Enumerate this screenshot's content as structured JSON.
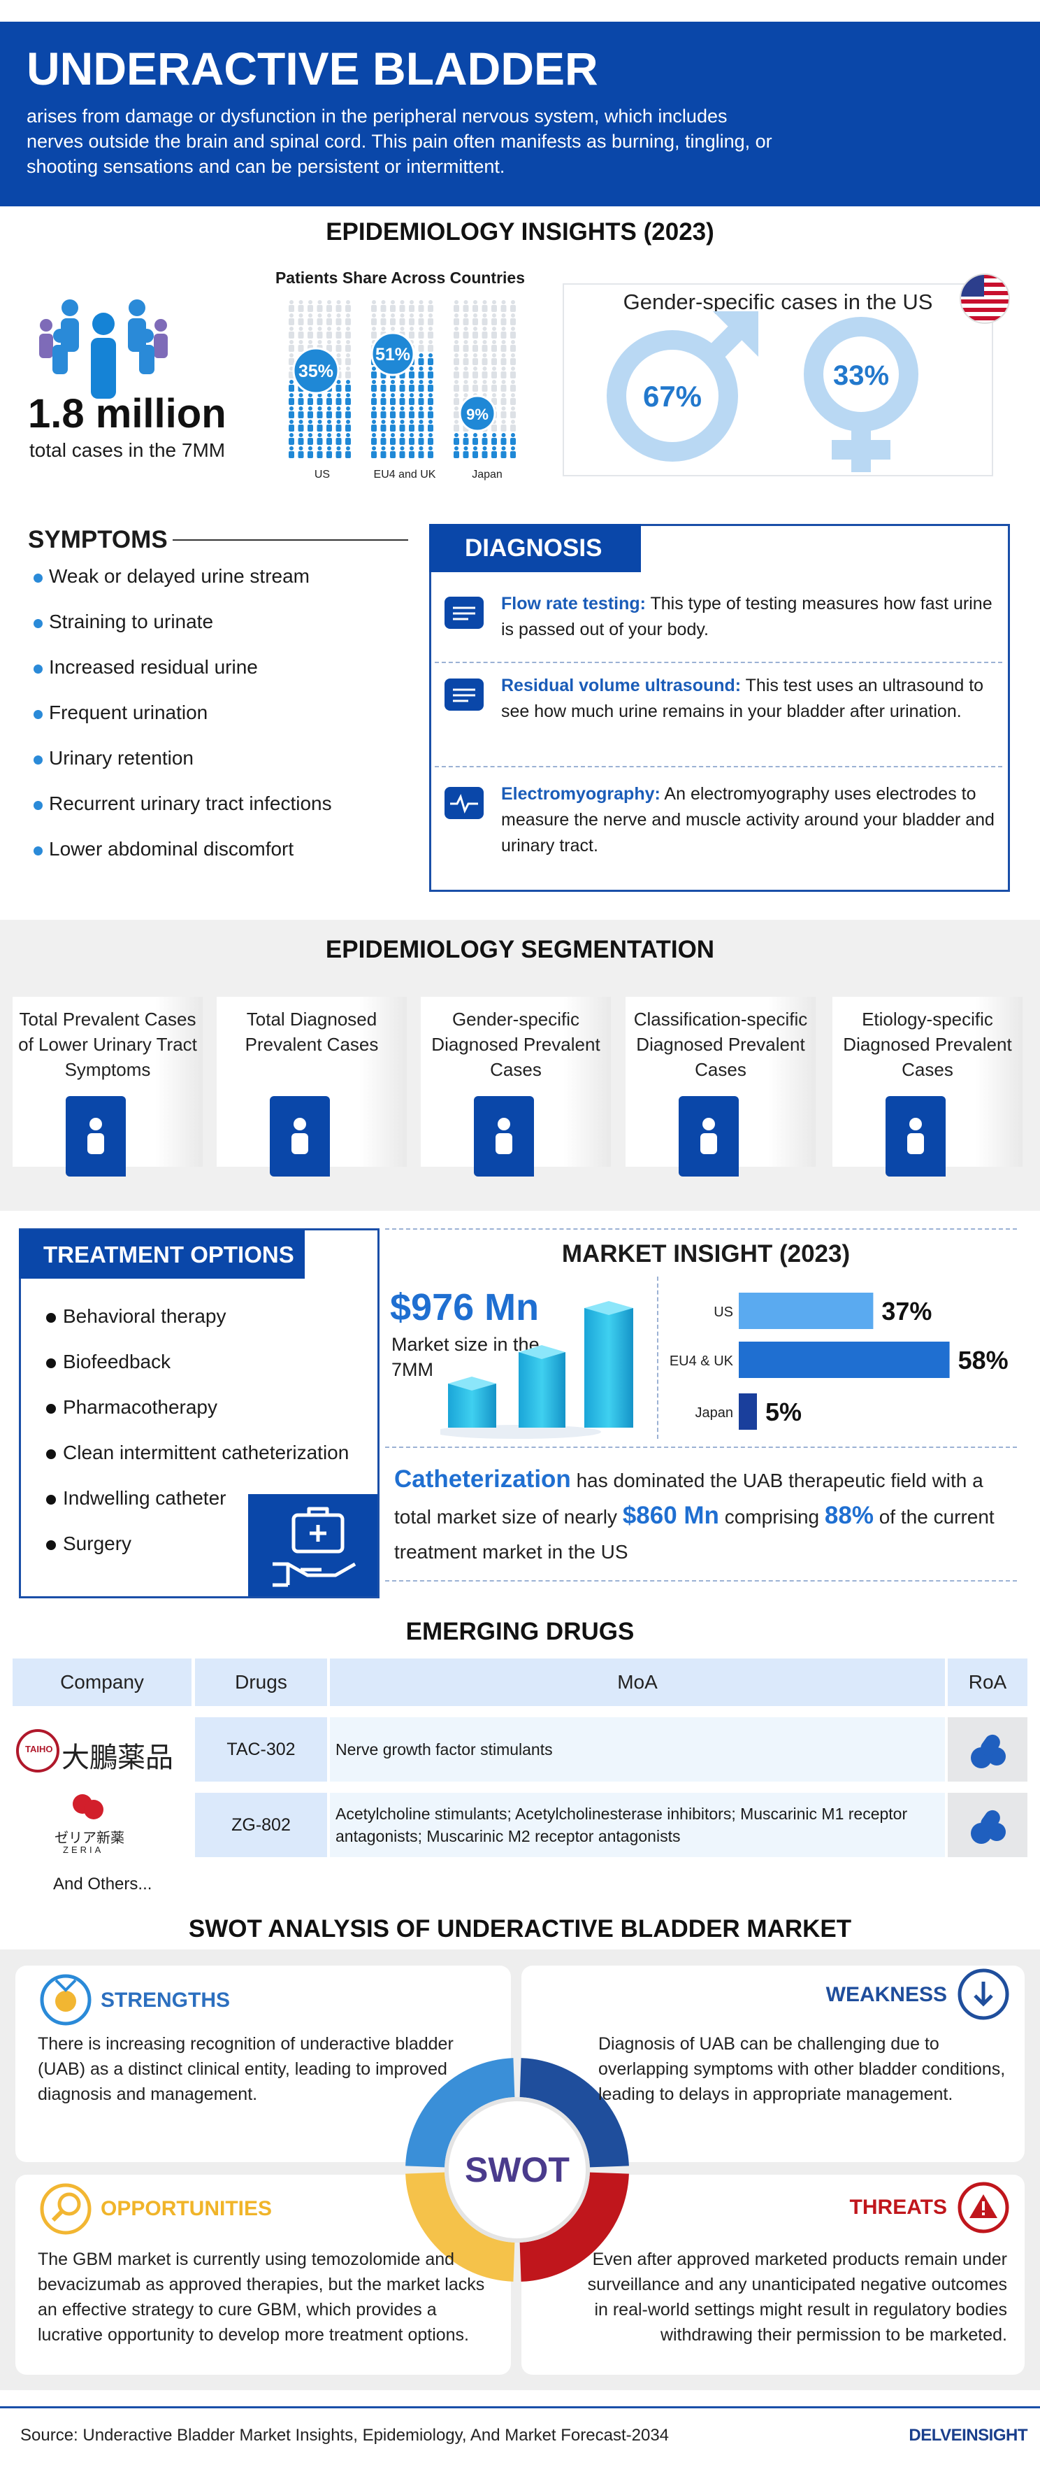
{
  "header": {
    "title": "UNDERACTIVE BLADDER",
    "description": "arises from damage or dysfunction in the peripheral nervous system, which includes nerves outside the brain and spinal cord. This pain often manifests as burning, tingling, or shooting sensations and can be persistent or intermittent."
  },
  "epidemiology": {
    "title": "EPIDEMIOLOGY INSIGHTS (2023)",
    "total_value": "1.8 million",
    "total_label": "total cases in the 7MM",
    "patients_share": {
      "title": "Patients Share Across Countries",
      "columns": [
        {
          "label": "US",
          "share": "35%"
        },
        {
          "label": "EU4 and UK",
          "share": "51%"
        },
        {
          "label": "Japan",
          "share": "9%"
        }
      ]
    },
    "gender": {
      "title": "Gender-specific cases in the US",
      "male": "67%",
      "female": "33%"
    }
  },
  "symptoms": {
    "title": "SYMPTOMS",
    "items": [
      "Weak or delayed urine stream",
      "Straining to urinate",
      "Increased residual urine",
      "Frequent urination",
      "Urinary retention",
      "Recurrent urinary tract infections",
      "Lower abdominal discomfort"
    ]
  },
  "diagnosis": {
    "title": "DIAGNOSIS",
    "items": [
      {
        "name": "Flow rate testing:",
        "description": "This type of testing measures how fast urine is passed out of your body."
      },
      {
        "name": "Residual volume ultrasound:",
        "description": "This test uses an ultrasound to see how much urine remains in your bladder after urination."
      },
      {
        "name": "Electromyography:",
        "description": "An electromyography uses electrodes to measure the nerve and muscle activity around your bladder and urinary tract."
      }
    ]
  },
  "segmentation": {
    "title": "EPIDEMIOLOGY SEGMENTATION",
    "cards": [
      "Total Prevalent Cases of Lower Urinary Tract Symptoms",
      "Total Diagnosed Prevalent Cases",
      "Gender-specific Diagnosed Prevalent Cases",
      "Classification-specific Diagnosed Prevalent Cases",
      "Etiology-specific Diagnosed Prevalent Cases"
    ]
  },
  "treatment": {
    "title": "TREATMENT OPTIONS",
    "items": [
      "Behavioral therapy",
      "Biofeedback",
      "Pharmacotherapy",
      "Clean intermittent catheterization",
      "Indwelling catheter",
      "Surgery"
    ]
  },
  "market": {
    "title": "MARKET INSIGHT (2023)",
    "size": "$976 Mn",
    "size_label": "Market size in the 7MM",
    "shares": {
      "categories": [
        "US",
        "EU4 & UK",
        "Japan"
      ],
      "values": [
        37,
        58,
        5
      ],
      "value_labels": [
        "37%",
        "58%",
        "5%"
      ],
      "colors": [
        "#5aaaf0",
        "#1f6fd1",
        "#1a3f9c"
      ]
    },
    "note": {
      "highlight1": "Catheterization",
      "text1": "has dominated the UAB therapeutic field with a total market size of nearly",
      "highlight2": "$860 Mn",
      "text2": "comprising",
      "highlight3": "88%",
      "text3": "of the current treatment market in the US"
    }
  },
  "emerging_drugs": {
    "title": "EMERGING DRUGS",
    "headers": [
      "Company",
      "Drugs",
      "MoA",
      "RoA"
    ],
    "rows": [
      {
        "company": "TAIHO",
        "company_native": "大鵬薬品",
        "drug": "TAC-302",
        "moa": "Nerve growth factor stimulants"
      },
      {
        "company": "ZERIA",
        "company_native": "ゼリア新薬",
        "drug": "ZG-802",
        "moa": "Acetylcholine stimulants; Acetylcholinesterase inhibitors; Muscarinic M1 receptor antagonists; Muscarinic M2 receptor antagonists"
      }
    ],
    "footer": "And Others..."
  },
  "swot": {
    "title": "SWOT ANALYSIS OF UNDERACTIVE BLADDER MARKET",
    "center": "SWOT",
    "strengths": {
      "title": "STRENGTHS",
      "text": "There is increasing recognition of underactive bladder (UAB) as a distinct clinical entity, leading to improved diagnosis and management."
    },
    "weakness": {
      "title": "WEAKNESS",
      "text": "Diagnosis of UAB can be challenging due to overlapping symptoms with other bladder conditions, leading to delays in appropriate management."
    },
    "opportunities": {
      "title": "OPPORTUNITIES",
      "text": "The GBM market is currently using temozolomide and bevacizumab as approved therapies, but the market lacks an effective strategy to cure GBM, which provides a lucrative opportunity to develop more treatment options."
    },
    "threats": {
      "title": "THREATS",
      "text": "Even after approved marketed products remain under surveillance and any unanticipated negative outcomes in real-world settings might result in regulatory bodies withdrawing their permission to be marketed."
    }
  },
  "footer": {
    "source": "Source: Underactive Bladder Market Insights, Epidemiology, And Market Forecast-2034",
    "brand": "DELVEINSIGHT"
  }
}
